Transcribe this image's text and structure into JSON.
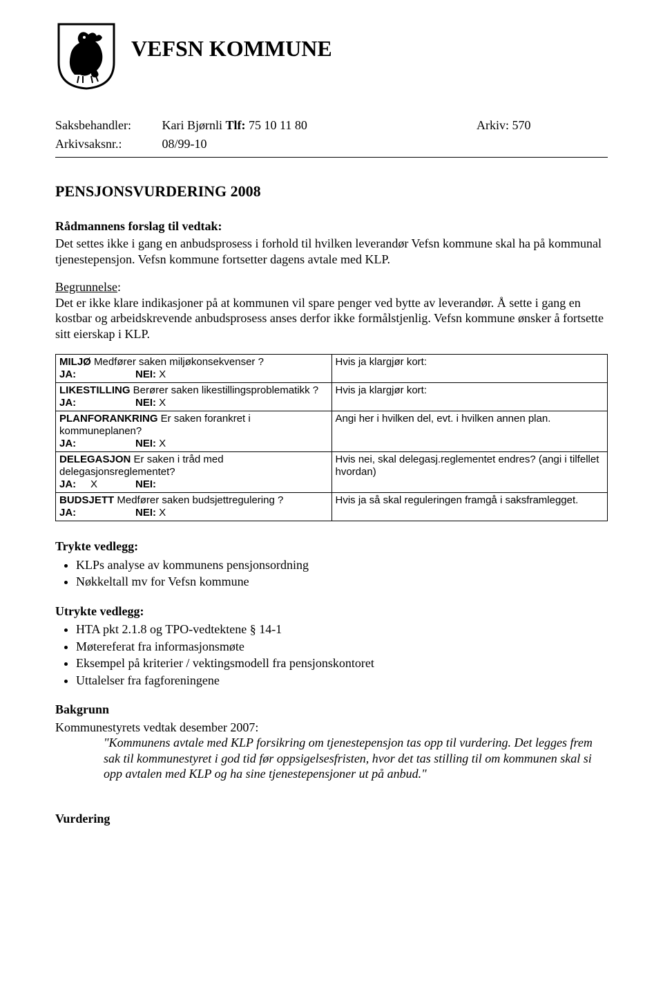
{
  "header": {
    "kommune_name": "VEFSN KOMMUNE"
  },
  "meta": {
    "saksbehandler_label": "Saksbehandler:",
    "saksbehandler_val": "Kari Bjørnli ",
    "tlf_label": "Tlf:",
    "tlf_val": " 75 10 11 80",
    "arkiv_label": "Arkiv:",
    "arkiv_val": " 570",
    "arkivsaksnr_label": "Arkivsaksnr.:",
    "arkivsaksnr_val": "08/99-10"
  },
  "title": "PENSJONSVURDERING 2008",
  "forslag_head": "Rådmannens forslag til vedtak:",
  "forslag_body": "Det settes ikke i gang en anbudsprosess i forhold til hvilken leverandør Vefsn kommune skal ha på kommunal tjenestepensjon. Vefsn kommune fortsetter dagens avtale med KLP.",
  "begrunnelse_head": "Begrunnelse",
  "begrunnelse_body": "Det er ikke klare indikasjoner på at kommunen vil spare penger ved bytte av leverandør. Å sette i gang en kostbar og arbeidskrevende anbudsprosess anses derfor ikke formålstjenlig. Vefsn kommune ønsker å fortsette sitt eierskap i KLP.",
  "checklist": {
    "ja": "JA:",
    "nei": "NEI:",
    "x": "X",
    "rows": [
      {
        "q_label": "MILJØ",
        "q_rest": "  Medfører saken miljøkonsekvenser ?",
        "ja_val": "",
        "nei_val": " X",
        "right": "Hvis ja klargjør kort: "
      },
      {
        "q_label": "LIKESTILLING",
        "q_rest": " Berører saken likestillingsproblematikk ?",
        "ja_val": "",
        "nei_val": " X",
        "right": "Hvis ja klargjør kort: "
      },
      {
        "q_label": "PLANFORANKRING",
        "q_rest": "   Er saken forankret i kommuneplanen?",
        "ja_val": "",
        "nei_val": " X",
        "right": "Angi  her  i hvilken del,  evt.  i hvilken annen plan."
      },
      {
        "q_label": "DELEGASJON",
        "q_rest": " Er saken i tråd  med  delegasjonsreglementet?",
        "ja_val": " X",
        "nei_val": "",
        "right": "Hvis nei, skal delegasj.reglementet endres? (angi i tilfellet hvordan)"
      },
      {
        "q_label": "BUDSJETT",
        "q_rest": " Medfører saken budsjettregulering ?",
        "ja_val": "",
        "nei_val": " X",
        "right": "Hvis ja så skal reguleringen framgå i saksframlegget."
      }
    ]
  },
  "trykte_head": "Trykte vedlegg:",
  "trykte_items": [
    "KLPs analyse av kommunens pensjonsordning",
    "Nøkkeltall mv for Vefsn kommune"
  ],
  "utrykte_head": "Utrykte vedlegg:",
  "utrykte_items": [
    "HTA pkt 2.1.8 og TPO-vedtektene § 14-1",
    "Møtereferat fra informasjonsmøte",
    "Eksempel på kriterier / vektingsmodell fra pensjonskontoret",
    "Uttalelser fra fagforeningene"
  ],
  "bakgrunn_head": "Bakgrunn",
  "bakgrunn_intro": "Kommunestyrets vedtak desember 2007:",
  "bakgrunn_quote": "\"Kommunens avtale med KLP forsikring om tjenestepensjon tas opp til vurdering. Det legges frem sak til kommunestyret i god tid før oppsigelsesfristen, hvor det tas stilling til om kommunen skal si opp avtalen med KLP og ha sine tjenestepensjoner ut på anbud.\"",
  "vurdering_head": "Vurdering"
}
